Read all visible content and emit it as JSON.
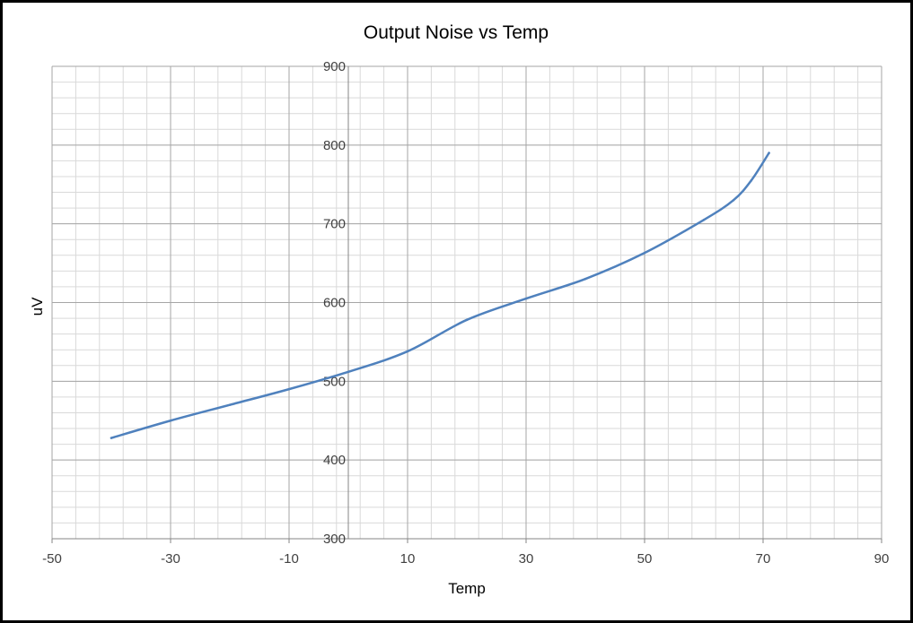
{
  "chart_data": {
    "type": "line",
    "title": "Output Noise vs Temp",
    "xlabel": "Temp",
    "ylabel": "uV",
    "xlim": [
      -50,
      90
    ],
    "ylim": [
      300,
      900
    ],
    "x_major_ticks": [
      -50,
      -30,
      -10,
      10,
      30,
      50,
      70,
      90
    ],
    "x_minor_step": 4,
    "y_major_ticks": [
      300,
      400,
      500,
      600,
      700,
      800,
      900
    ],
    "y_minor_step": 20,
    "grid": true,
    "legend": "none",
    "series": [
      {
        "color": "#4F81BD",
        "x": [
          -40,
          -30,
          -20,
          -10,
          0,
          10,
          20,
          30,
          40,
          50,
          60,
          65,
          68,
          71
        ],
        "y": [
          428,
          450,
          470,
          490,
          512,
          538,
          578,
          605,
          630,
          663,
          705,
          730,
          755,
          790
        ]
      }
    ]
  }
}
